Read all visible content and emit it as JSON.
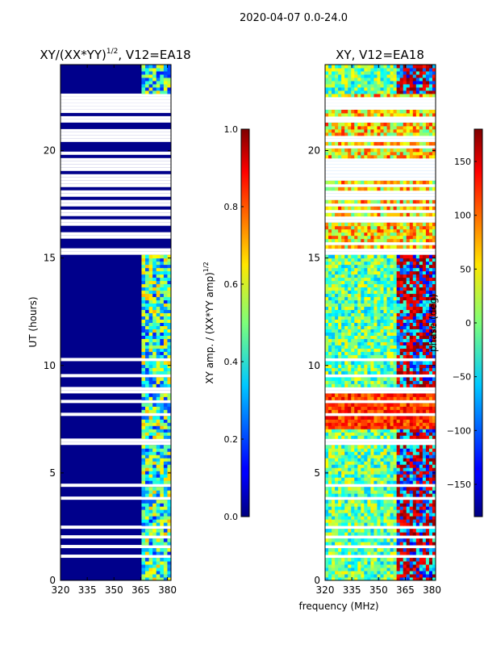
{
  "figure": {
    "suptitle": "2020-04-07 0.0-24.0",
    "xlabel_shared": "frequency (MHz)"
  },
  "chart_data": [
    {
      "type": "heatmap",
      "title_main": "XY/(XX*YY)",
      "title_exp": "1/2",
      "title_tail": ", V12=EA18",
      "xlabel": "",
      "ylabel": "UT (hours)",
      "xlim": [
        320,
        382
      ],
      "ylim": [
        0,
        24
      ],
      "x_ticks": [
        320,
        335,
        350,
        365,
        380
      ],
      "y_ticks": [
        0,
        5,
        10,
        15,
        20
      ],
      "colormap": "jet",
      "band_start_mhz": 364,
      "colorbar": {
        "label_main": "XY amp. / (XX*YY amp)",
        "label_exp": "1/2",
        "range": [
          0.0,
          1.0
        ],
        "ticks": [
          "0.0",
          "0.2",
          "0.4",
          "0.6",
          "0.8",
          "1.0"
        ],
        "tick_values": [
          0.0,
          0.2,
          0.4,
          0.6,
          0.8,
          1.0
        ]
      }
    },
    {
      "type": "heatmap",
      "title_main": "XY, V12=EA18",
      "xlabel": "frequency (MHz)",
      "ylabel": "",
      "xlim": [
        320,
        382
      ],
      "ylim": [
        0,
        24
      ],
      "x_ticks": [
        320,
        335,
        350,
        365,
        380
      ],
      "y_ticks": [
        0,
        5,
        10,
        15,
        20
      ],
      "colormap": "jet",
      "colorbar": {
        "label_main": "phase (deg)",
        "range": [
          -180,
          180
        ],
        "ticks": [
          "150",
          "100",
          "50",
          "0",
          "−50",
          "−100",
          "−150"
        ],
        "tick_values": [
          150,
          100,
          50,
          0,
          -50,
          -100,
          -150
        ]
      }
    }
  ]
}
